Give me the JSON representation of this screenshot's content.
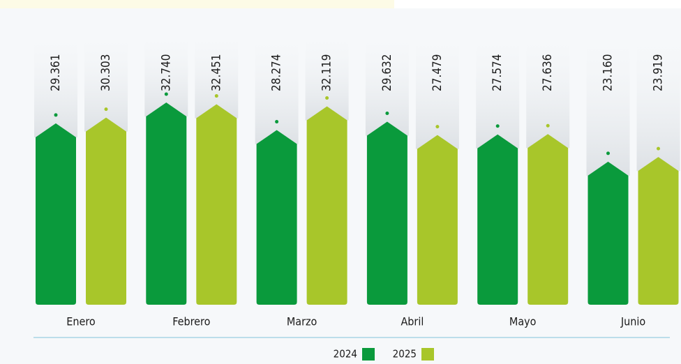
{
  "chart_data": {
    "type": "bar",
    "categories": [
      "Enero",
      "Febrero",
      "Marzo",
      "Abril",
      "Mayo",
      "Junio"
    ],
    "series": [
      {
        "name": "2024",
        "color": "#0a9a3c",
        "values": [
          29361,
          32740,
          28274,
          29632,
          27574,
          23160
        ],
        "value_labels": [
          "29.361",
          "32.740",
          "28.274",
          "29.632",
          "27.574",
          "23.160"
        ]
      },
      {
        "name": "2025",
        "color": "#a8c62a",
        "values": [
          30303,
          32451,
          32119,
          27479,
          27636,
          23919
        ],
        "value_labels": [
          "30.303",
          "32.451",
          "32.119",
          "27.479",
          "27.636",
          "23.919"
        ]
      }
    ],
    "legend": "bottom"
  }
}
